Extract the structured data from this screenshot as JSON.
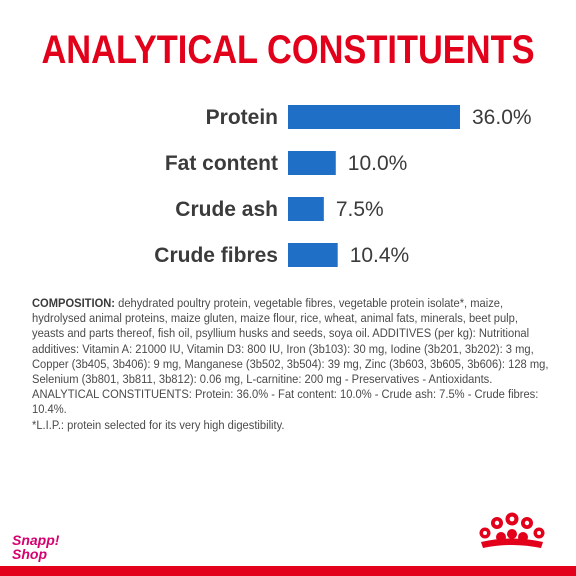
{
  "title": "ANALYTICAL CONSTITUENTS",
  "colors": {
    "bar": "#1f6fc6",
    "title": "#e2001a",
    "brand": "#d6006e",
    "footer_bar": "#e2001a"
  },
  "chart_data": {
    "type": "bar",
    "orientation": "horizontal",
    "categories": [
      "Protein",
      "Fat content",
      "Crude ash",
      "Crude fibres"
    ],
    "values": [
      36.0,
      10.0,
      7.5,
      10.4
    ],
    "value_labels": [
      "36.0%",
      "10.0%",
      "7.5%",
      "10.4%"
    ],
    "xlim": [
      0,
      36.0
    ],
    "grid": false,
    "legend": "none"
  },
  "composition": {
    "heading": "COMPOSITION:",
    "text": " dehydrated poultry protein, vegetable fibres, vegetable protein isolate*, maize, hydrolysed animal proteins, maize gluten, maize flour, rice, wheat, animal fats, minerals, beet pulp, yeasts and parts thereof, fish oil, psyllium husks and seeds, soya oil. ADDITIVES (per kg): Nutritional additives: Vitamin A: 21000 IU, Vitamin D3: 800 IU, Iron (3b103): 30 mg, Iodine (3b201, 3b202): 3 mg, Copper (3b405, 3b406): 9 mg, Manganese (3b502, 3b504): 39 mg, Zinc (3b603, 3b605, 3b606): 128 mg, Selenium (3b801, 3b811, 3b812): 0.06 mg, L-carnitine: 200 mg - Preservatives - Antioxidants. ANALYTICAL CONSTITUENTS: Protein: 36.0% - Fat content: 10.0% - Crude ash: 7.5% - Crude fibres: 10.4%.",
    "footnote": "*L.I.P.: protein selected for its very high digestibility."
  },
  "brand": {
    "line1": "Snapp!",
    "line2": "Shop"
  },
  "icons": {
    "crown": "royal-canin-crown-icon"
  }
}
